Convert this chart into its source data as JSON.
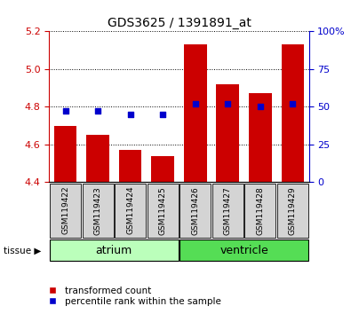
{
  "title": "GDS3625 / 1391891_at",
  "samples": [
    "GSM119422",
    "GSM119423",
    "GSM119424",
    "GSM119425",
    "GSM119426",
    "GSM119427",
    "GSM119428",
    "GSM119429"
  ],
  "transformed_count": [
    4.7,
    4.65,
    4.57,
    4.54,
    5.13,
    4.92,
    4.87,
    5.13
  ],
  "percentile_rank": [
    47,
    47,
    45,
    45,
    52,
    52,
    50,
    52
  ],
  "bar_bottom": 4.4,
  "ylim_left": [
    4.4,
    5.2
  ],
  "ylim_right": [
    0,
    100
  ],
  "yticks_left": [
    4.4,
    4.6,
    4.8,
    5.0,
    5.2
  ],
  "yticks_right": [
    0,
    25,
    50,
    75,
    100
  ],
  "bar_color": "#cc0000",
  "dot_color": "#0000cc",
  "tissue_groups": [
    {
      "label": "atrium",
      "indices": [
        0,
        1,
        2,
        3
      ],
      "color": "#bbffbb"
    },
    {
      "label": "ventricle",
      "indices": [
        4,
        5,
        6,
        7
      ],
      "color": "#55dd55"
    }
  ],
  "left_axis_color": "#cc0000",
  "right_axis_color": "#0000cc",
  "grid_color": "#000000",
  "legend_labels": [
    "transformed count",
    "percentile rank within the sample"
  ],
  "tissue_label": "tissue",
  "bar_width": 0.7
}
